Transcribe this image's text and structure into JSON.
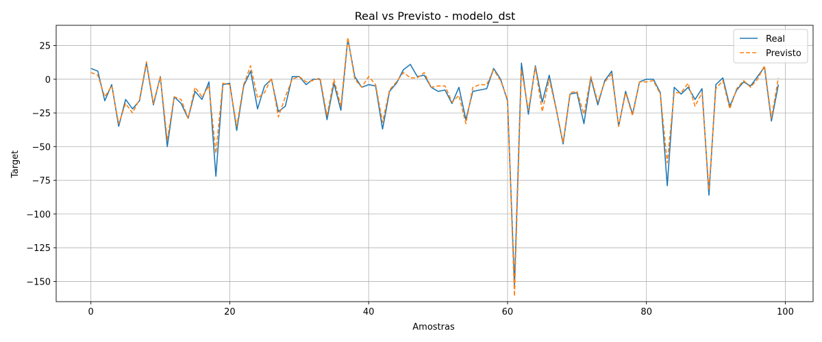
{
  "chart_data": {
    "type": "line",
    "title": "Real vs Previsto - modelo_dst",
    "xlabel": "Amostras",
    "ylabel": "Target",
    "xlim": [
      -5,
      104
    ],
    "ylim": [
      -165,
      40
    ],
    "xticks": [
      0,
      20,
      40,
      60,
      80,
      100
    ],
    "yticks": [
      25,
      0,
      -25,
      -50,
      -75,
      -100,
      -125,
      -150
    ],
    "grid": true,
    "legend_position": "top-right",
    "series": [
      {
        "name": "Real",
        "color": "#1f77b4",
        "style": "solid",
        "x": [
          0,
          1,
          2,
          3,
          4,
          5,
          6,
          7,
          8,
          9,
          10,
          11,
          12,
          13,
          14,
          15,
          16,
          17,
          18,
          19,
          20,
          21,
          22,
          23,
          24,
          25,
          26,
          27,
          28,
          29,
          30,
          31,
          32,
          33,
          34,
          35,
          36,
          37,
          38,
          39,
          40,
          41,
          42,
          43,
          44,
          45,
          46,
          47,
          48,
          49,
          50,
          51,
          52,
          53,
          54,
          55,
          56,
          57,
          58,
          59,
          60,
          61,
          62,
          63,
          64,
          65,
          66,
          67,
          68,
          69,
          70,
          71,
          72,
          73,
          74,
          75,
          76,
          77,
          78,
          79,
          80,
          81,
          82,
          83,
          84,
          85,
          86,
          87,
          88,
          89,
          90,
          91,
          92,
          93,
          94,
          95,
          96,
          97,
          98,
          99
        ],
        "values": [
          8,
          6,
          -16,
          -4,
          -35,
          -15,
          -22,
          -16,
          12,
          -19,
          2,
          -50,
          -13,
          -18,
          -29,
          -9,
          -15,
          -2,
          -72,
          -4,
          -3,
          -38,
          -5,
          6,
          -22,
          -5,
          0,
          -24,
          -20,
          2,
          2,
          -4,
          0,
          0,
          -30,
          -3,
          -23,
          30,
          2,
          -6,
          -4,
          -5,
          -37,
          -9,
          -3,
          7,
          11,
          2,
          3,
          -6,
          -9,
          -8,
          -18,
          -6,
          -30,
          -9,
          -8,
          -7,
          8,
          0,
          -16,
          -153,
          12,
          -26,
          10,
          -17,
          3,
          -22,
          -48,
          -11,
          -10,
          -33,
          1,
          -19,
          -1,
          6,
          -35,
          -9,
          -26,
          -2,
          0,
          0,
          -10,
          -79,
          -6,
          -11,
          -6,
          -15,
          -7,
          -86,
          -4,
          1,
          -20,
          -8,
          -2,
          -5,
          2,
          9,
          -31,
          -4
        ]
      },
      {
        "name": "Previsto",
        "color": "#ff7f0e",
        "style": "dashed",
        "x": [
          0,
          1,
          2,
          3,
          4,
          5,
          6,
          7,
          8,
          9,
          10,
          11,
          12,
          13,
          14,
          15,
          16,
          17,
          18,
          19,
          20,
          21,
          22,
          23,
          24,
          25,
          26,
          27,
          28,
          29,
          30,
          31,
          32,
          33,
          34,
          35,
          36,
          37,
          38,
          39,
          40,
          41,
          42,
          43,
          44,
          45,
          46,
          47,
          48,
          49,
          50,
          51,
          52,
          53,
          54,
          55,
          56,
          57,
          58,
          59,
          60,
          61,
          62,
          63,
          64,
          65,
          66,
          67,
          68,
          69,
          70,
          71,
          72,
          73,
          74,
          75,
          76,
          77,
          78,
          79,
          80,
          81,
          82,
          83,
          84,
          85,
          86,
          87,
          88,
          89,
          90,
          91,
          92,
          93,
          94,
          95,
          96,
          97,
          98,
          99
        ],
        "values": [
          5,
          3,
          -13,
          -5,
          -33,
          -18,
          -25,
          -15,
          13,
          -18,
          2,
          -45,
          -13,
          -15,
          -29,
          -6,
          -13,
          -5,
          -55,
          -3,
          -4,
          -35,
          -4,
          10,
          -14,
          -10,
          1,
          -28,
          -13,
          0,
          2,
          -2,
          -1,
          1,
          -27,
          0,
          -20,
          31,
          0,
          -6,
          2,
          -4,
          -32,
          -8,
          -2,
          5,
          1,
          1,
          5,
          -6,
          -5,
          -5,
          -17,
          -12,
          -33,
          -6,
          -4,
          -4,
          7,
          -1,
          -15,
          -161,
          7,
          -23,
          9,
          -24,
          0,
          -22,
          -47,
          -10,
          -9,
          -26,
          2,
          -17,
          -2,
          4,
          -35,
          -10,
          -27,
          -2,
          -2,
          -1,
          -11,
          -62,
          -10,
          -10,
          -3,
          -20,
          -10,
          -82,
          -7,
          -1,
          -22,
          -7,
          -1,
          -6,
          0,
          10,
          -29,
          1
        ]
      }
    ]
  }
}
